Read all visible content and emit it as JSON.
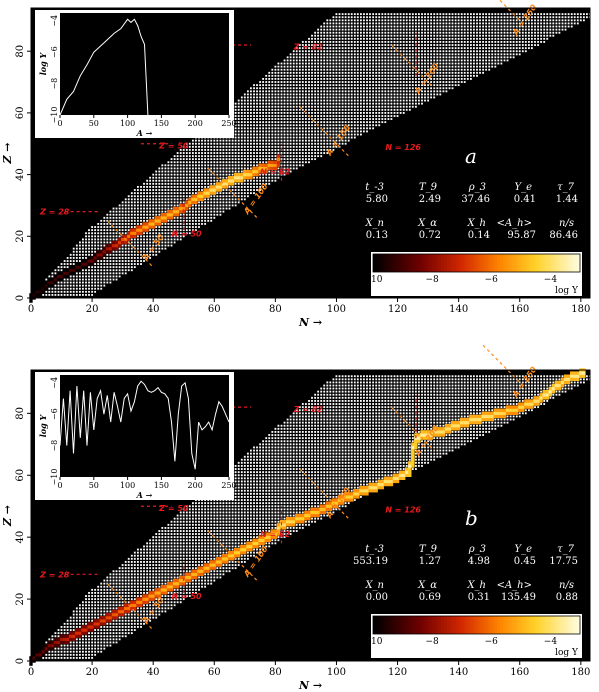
{
  "colors": {
    "background": "#000000",
    "stable": "#ffffff",
    "magic_line": "#e8191e",
    "isobar_line": "#ff8c1a"
  },
  "chart_data": [
    {
      "type": "heatmap",
      "panel_label": "a",
      "xlabel": "N →",
      "ylabel": "Z →",
      "xlim": [
        0,
        183
      ],
      "ylim": [
        0,
        94
      ],
      "x_ticks": [
        "0",
        "20",
        "40",
        "60",
        "80",
        "100",
        "120",
        "140",
        "160",
        "180"
      ],
      "y_ticks": [
        "0",
        "20",
        "40",
        "60",
        "80"
      ],
      "magic_labels": {
        "z28": "Z = 28",
        "z50": "Z = 50",
        "z82": "Z = 82",
        "n50": "N = 50",
        "n82": "N = 82",
        "n126": "N = 126"
      },
      "mass_labels": {
        "a50": "A = 50",
        "a100": "A = 100",
        "a150": "A = 150",
        "a200": "A = 200",
        "a250": "A = 250"
      },
      "params": [
        {
          "label": "t_-3",
          "value": "5.80"
        },
        {
          "label": "T_9",
          "value": "2.49"
        },
        {
          "label": "ρ_3",
          "value": "37.46"
        },
        {
          "label": "Y_e",
          "value": "0.41"
        },
        {
          "label": "τ_7",
          "value": "1.44"
        },
        {
          "label": "X_n",
          "value": "0.13"
        },
        {
          "label": "X_α",
          "value": "0.72"
        },
        {
          "label": "X_h",
          "value": "0.14"
        },
        {
          "label": "<A_h>",
          "value": "95.87"
        },
        {
          "label": "n/s",
          "value": "86.46"
        }
      ],
      "colorbar": {
        "label": "log Y",
        "range": [
          -10,
          -3
        ],
        "ticks": [
          "−10",
          "−8",
          "−6",
          "−4"
        ]
      },
      "path": {
        "n": [
          0,
          4,
          8,
          12,
          16,
          20,
          24,
          28,
          32,
          36,
          40,
          44,
          48,
          50,
          52,
          56,
          60,
          64,
          68,
          72,
          76,
          80,
          82
        ],
        "z": [
          0,
          3,
          6,
          8,
          10,
          12,
          15,
          17,
          20,
          22,
          24,
          26,
          28,
          29,
          31,
          33,
          35,
          37,
          39,
          40,
          42,
          43,
          46
        ],
        "logY": [
          -9.5,
          -9.5,
          -9,
          -9,
          -9,
          -8.5,
          -8,
          -7,
          -6,
          -5.5,
          -5,
          -5,
          -5,
          -5.5,
          -5,
          -4.5,
          -4,
          -4,
          -3.8,
          -4.5,
          -5,
          -5.5,
          -6
        ]
      },
      "inset": {
        "xlabel": "A →",
        "ylabel": "log Y",
        "xlim": [
          0,
          250
        ],
        "ylim": [
          -10,
          -3.5
        ],
        "x_ticks": [
          "0",
          "50",
          "100",
          "150",
          "200",
          "250"
        ],
        "y_ticks": [
          "−10",
          "−8",
          "−6",
          "−4"
        ],
        "x": [
          0,
          5,
          10,
          20,
          30,
          40,
          50,
          60,
          70,
          80,
          90,
          100,
          105,
          110,
          115,
          120,
          125,
          130
        ],
        "y": [
          -10,
          -9.5,
          -9,
          -8.5,
          -7.5,
          -6.8,
          -6,
          -5.6,
          -5.2,
          -4.8,
          -4.5,
          -3.9,
          -4.1,
          -3.9,
          -4.3,
          -5,
          -5.5,
          -10
        ]
      }
    },
    {
      "type": "heatmap",
      "panel_label": "b",
      "xlabel": "N →",
      "ylabel": "Z →",
      "xlim": [
        0,
        183
      ],
      "ylim": [
        0,
        94
      ],
      "x_ticks": [
        "0",
        "20",
        "40",
        "60",
        "80",
        "100",
        "120",
        "140",
        "160",
        "180"
      ],
      "y_ticks": [
        "0",
        "20",
        "40",
        "60",
        "80"
      ],
      "magic_labels": {
        "z28": "Z = 28",
        "z50": "Z = 50",
        "z82": "Z = 82",
        "n50": "N = 50",
        "n82": "N = 82",
        "n126": "N = 126"
      },
      "mass_labels": {
        "a50": "A = 50",
        "a100": "A = 100",
        "a150": "A = 150",
        "a200": "A = 200",
        "a250": "A = 250"
      },
      "params": [
        {
          "label": "t_-3",
          "value": "553.19"
        },
        {
          "label": "T_9",
          "value": "1.27"
        },
        {
          "label": "ρ_3",
          "value": "4.98"
        },
        {
          "label": "Y_e",
          "value": "0.45"
        },
        {
          "label": "τ_7",
          "value": "17.75"
        },
        {
          "label": "X_n",
          "value": "0.00"
        },
        {
          "label": "X_α",
          "value": "0.69"
        },
        {
          "label": "X_h",
          "value": "0.31"
        },
        {
          "label": "<A_h>",
          "value": "135.49"
        },
        {
          "label": "n/s",
          "value": "0.88"
        }
      ],
      "colorbar": {
        "label": "log Y",
        "range": [
          -10,
          -3
        ],
        "ticks": [
          "−10",
          "−8",
          "−6",
          "−4"
        ]
      },
      "path": {
        "n": [
          0,
          4,
          8,
          14,
          20,
          26,
          32,
          38,
          44,
          50,
          56,
          62,
          68,
          74,
          80,
          82,
          88,
          96,
          104,
          112,
          120,
          124,
          126,
          134,
          142,
          150,
          158,
          166,
          170,
          174,
          178,
          182
        ],
        "z": [
          0,
          3,
          6,
          8,
          11,
          14,
          17,
          20,
          23,
          26,
          29,
          32,
          35,
          38,
          41,
          44,
          46,
          49,
          53,
          56,
          59,
          61,
          72,
          74,
          77,
          79,
          81,
          84,
          87,
          90,
          92,
          93
        ],
        "logY": [
          -9,
          -8.5,
          -8,
          -7,
          -7,
          -6.5,
          -6,
          -5.5,
          -5,
          -5,
          -5,
          -4.8,
          -4.5,
          -4.5,
          -4.5,
          -4,
          -4.5,
          -4.8,
          -4.5,
          -4,
          -4,
          -3.5,
          -3.5,
          -4,
          -4,
          -4,
          -4.5,
          -4,
          -3.5,
          -4,
          -3.8,
          -3.5
        ]
      },
      "inset": {
        "xlabel": "A →",
        "ylabel": "log Y",
        "xlim": [
          0,
          250
        ],
        "ylim": [
          -10,
          -3.5
        ],
        "x_ticks": [
          "0",
          "50",
          "100",
          "150",
          "200",
          "250"
        ],
        "y_ticks": [
          "−10",
          "−8",
          "−6",
          "−4"
        ],
        "x": [
          0,
          5,
          10,
          15,
          20,
          25,
          30,
          35,
          40,
          45,
          50,
          55,
          60,
          65,
          70,
          75,
          80,
          85,
          90,
          95,
          100,
          105,
          110,
          115,
          120,
          125,
          130,
          135,
          140,
          145,
          150,
          155,
          160,
          165,
          170,
          175,
          180,
          185,
          190,
          195,
          200,
          205,
          210,
          215,
          220,
          225,
          230,
          235,
          240,
          245,
          250
        ],
        "y": [
          -8,
          -5,
          -8,
          -4.5,
          -8.5,
          -4.2,
          -7.5,
          -4.5,
          -8,
          -4.6,
          -7,
          -5,
          -4.5,
          -6,
          -4.8,
          -6.5,
          -4.6,
          -5.5,
          -6.5,
          -5,
          -4.7,
          -5.8,
          -5.2,
          -4.2,
          -3.9,
          -4.1,
          -4.5,
          -4.6,
          -4.5,
          -4.3,
          -4.6,
          -4.7,
          -5,
          -6.5,
          -9,
          -6,
          -4.2,
          -4,
          -5,
          -8.5,
          -9.5,
          -6.5,
          -7,
          -6.8,
          -6.5,
          -7,
          -6,
          -5.2,
          -5.5,
          -6,
          -6.5
        ]
      }
    }
  ]
}
